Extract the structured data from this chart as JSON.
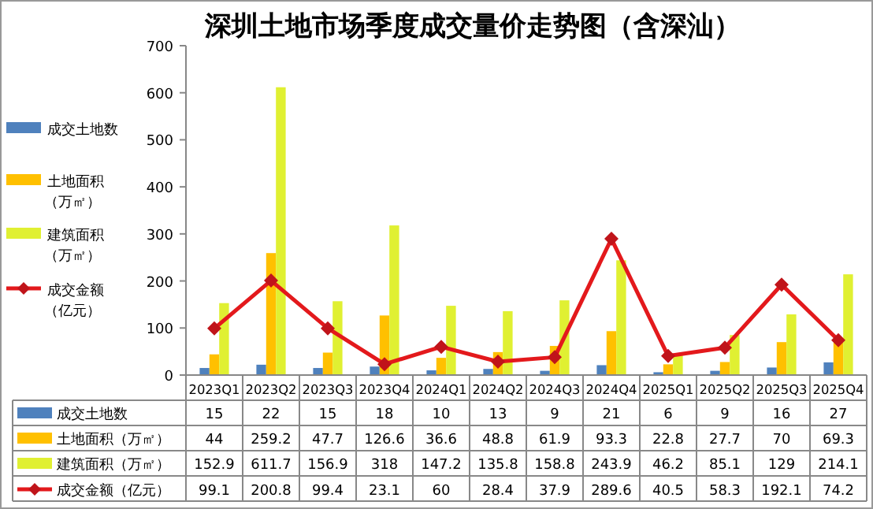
{
  "chart_data": {
    "type": "bar",
    "title": "深圳土地市场季度成交量价走势图（含深汕）",
    "categories": [
      "2023Q1",
      "2023Q2",
      "2023Q3",
      "2023Q4",
      "2024Q1",
      "2024Q2",
      "2024Q3",
      "2024Q4",
      "2025Q1",
      "2025Q2",
      "2025Q3",
      "2025Q4"
    ],
    "series": [
      {
        "name": "成交土地数",
        "color": "#4f81bd",
        "values": [
          15,
          22,
          15,
          18,
          10,
          13,
          9,
          21,
          6,
          9,
          16,
          27
        ]
      },
      {
        "name": "土地面积（万㎡）",
        "color": "#ffc000",
        "values": [
          44,
          259.2,
          47.7,
          126.6,
          36.6,
          48.8,
          61.9,
          93.3,
          22.8,
          27.7,
          70,
          69.3
        ]
      },
      {
        "name": "建筑面积（万㎡）",
        "color": "#e0f032",
        "values": [
          152.9,
          611.7,
          156.9,
          318,
          147.2,
          135.8,
          158.8,
          243.9,
          46.2,
          85.1,
          129,
          214.1
        ]
      },
      {
        "name": "成交金额（亿元）",
        "color": "#e3191c",
        "type": "line",
        "marker": "diamond",
        "values": [
          99.1,
          200.8,
          99.4,
          23.1,
          60,
          28.4,
          37.9,
          289.6,
          40.5,
          58.3,
          192.1,
          74.2
        ]
      }
    ],
    "ylim": [
      0,
      700
    ],
    "yticks": [
      0,
      100,
      200,
      300,
      400,
      500,
      600,
      700
    ],
    "data_labels": true,
    "legend": "left",
    "grid": false
  }
}
